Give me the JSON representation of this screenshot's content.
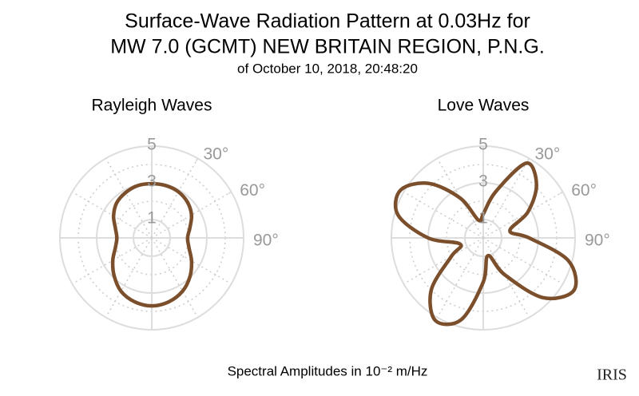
{
  "title": [
    "Surface-Wave Radiation Pattern at 0.03Hz for",
    "MW 7.0 (GCMT) NEW BRITAIN REGION, P.N.G."
  ],
  "subtitle": "of October 10, 2018, 20:48:20",
  "footer": "Spectral Amplitudes in 10⁻² m/Hz",
  "logo": "IRIS",
  "chart_data": [
    {
      "type": "polar",
      "title": "Rayleigh Waves",
      "color": "#7b4f2c",
      "theta_zero": "N",
      "theta_direction": "clockwise",
      "theta": [
        0,
        15,
        30,
        45,
        60,
        75,
        90,
        105,
        120,
        135,
        150,
        165,
        180,
        195,
        210,
        225,
        240,
        255,
        270,
        285,
        300,
        315,
        330,
        345
      ],
      "values": [
        2.95,
        2.95,
        2.9,
        2.75,
        2.5,
        2.15,
        1.95,
        2.1,
        2.5,
        2.95,
        3.35,
        3.6,
        3.7,
        3.6,
        3.35,
        2.9,
        2.45,
        2.05,
        1.9,
        2.05,
        2.4,
        2.7,
        2.85,
        2.95
      ],
      "rlim": [
        0,
        5
      ],
      "rticks": [
        1,
        3,
        5
      ],
      "thetaticks": [
        {
          "value": 30,
          "label": "30°"
        },
        {
          "value": 60,
          "label": "60°"
        },
        {
          "value": 90,
          "label": "90°"
        }
      ]
    },
    {
      "type": "polar",
      "title": "Love Waves",
      "color": "#7b4f2c",
      "theta_zero": "N",
      "theta_direction": "clockwise",
      "theta": [
        0,
        15,
        30,
        45,
        60,
        75,
        90,
        105,
        120,
        135,
        150,
        165,
        180,
        195,
        210,
        225,
        240,
        255,
        270,
        285,
        300,
        315,
        330,
        345
      ],
      "values": [
        1.3,
        2.6,
        4.7,
        4.1,
        2.8,
        1.5,
        2.5,
        4.8,
        5.7,
        4.6,
        2.3,
        1.0,
        2.4,
        4.6,
        5.2,
        4.0,
        2.0,
        1.3,
        3.0,
        4.8,
        5.2,
        4.2,
        2.5,
        1.0
      ],
      "rlim": [
        0,
        5
      ],
      "rticks": [
        1,
        3,
        5
      ],
      "thetaticks": [
        {
          "value": 30,
          "label": "30°"
        },
        {
          "value": 60,
          "label": "60°"
        },
        {
          "value": 90,
          "label": "90°"
        }
      ]
    }
  ]
}
